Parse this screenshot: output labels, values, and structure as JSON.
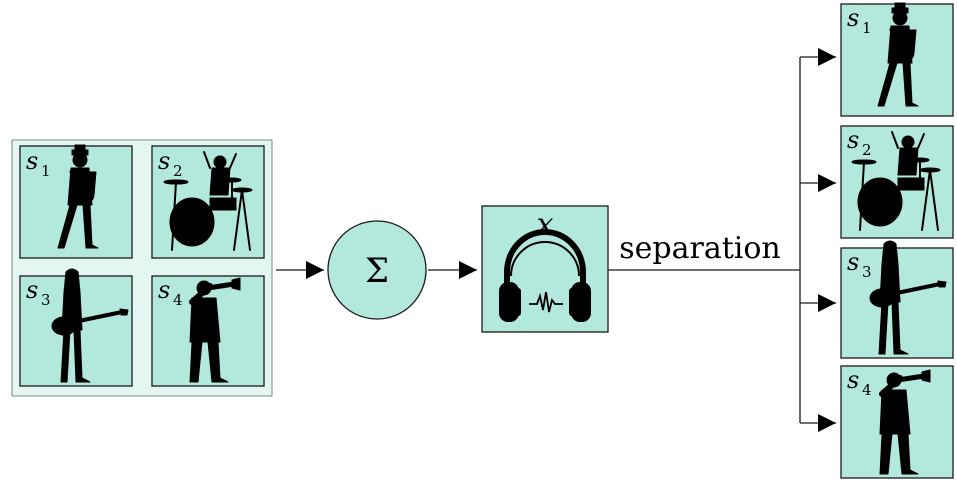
{
  "sources": [
    {
      "symbol": "s",
      "index": "1",
      "icon": "saxophone-player-icon"
    },
    {
      "symbol": "s",
      "index": "2",
      "icon": "drummer-icon"
    },
    {
      "symbol": "s",
      "index": "3",
      "icon": "guitarist-icon"
    },
    {
      "symbol": "s",
      "index": "4",
      "icon": "trumpeter-icon"
    }
  ],
  "sum_node": {
    "symbol": "Σ"
  },
  "mixture": {
    "symbol": "x",
    "icon": "headphones-icon"
  },
  "separation_label": "separation",
  "colors": {
    "box_fill": "#b3e8dc",
    "outer_fill": "#e3f6f1",
    "stroke": "#1a1a1a"
  }
}
